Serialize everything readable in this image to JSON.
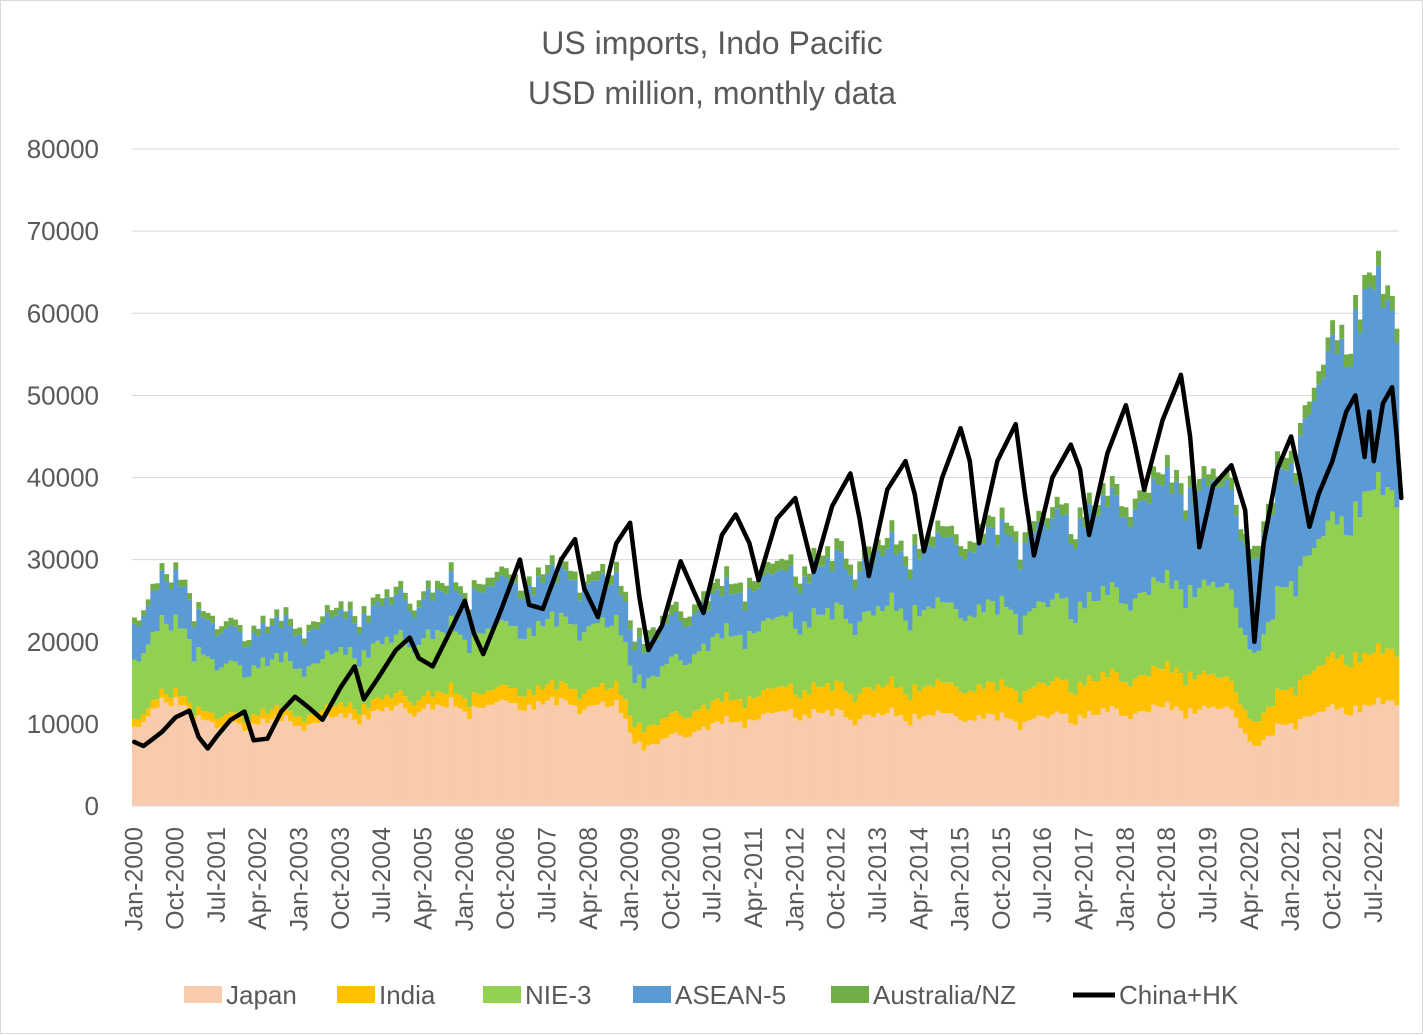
{
  "chart_data": {
    "type": "area",
    "stacking": "stacked columns with line overlay",
    "title": "US imports, Indo Pacific",
    "subtitle": "USD million, monthly data",
    "ylim": [
      0,
      80000
    ],
    "yticks": [
      0,
      10000,
      20000,
      30000,
      40000,
      50000,
      60000,
      70000,
      80000
    ],
    "grid": "horizontal",
    "legend_position": "bottom",
    "x_tick_labels": [
      "Jan-2000",
      "Oct-2000",
      "Jul-2001",
      "Apr-2002",
      "Jan-2003",
      "Oct-2003",
      "Jul-2004",
      "Apr-2005",
      "Jan-2006",
      "Oct-2006",
      "Jul-2007",
      "Apr-2008",
      "Jan-2009",
      "Oct-2009",
      "Jul-2010",
      "Apr-2011",
      "Jan-2012",
      "Oct-2012",
      "Jul-2013",
      "Apr-2014",
      "Jan-2015",
      "Oct-2015",
      "Jul-2016",
      "Apr-2017",
      "Jan-2018",
      "Oct-2018",
      "Jul-2019",
      "Apr-2020",
      "Jan-2021",
      "Oct-2021",
      "Jul-2022"
    ],
    "x_start": "Jan-2000",
    "x_end": "Dec-2022",
    "series": [
      {
        "name": "Japan",
        "color": "#F8CBAD",
        "anchors": [
          [
            "Jan-2000",
            10000
          ],
          [
            "Jul-2000",
            12500
          ],
          [
            "Jan-2001",
            12000
          ],
          [
            "Jul-2001",
            9500
          ],
          [
            "Jan-2002",
            10000
          ],
          [
            "Jul-2002",
            10500
          ],
          [
            "Jan-2003",
            10000
          ],
          [
            "Jan-2004",
            11000
          ],
          [
            "Jan-2005",
            12000
          ],
          [
            "Jan-2006",
            12000
          ],
          [
            "Jan-2007",
            12500
          ],
          [
            "Jan-2008",
            12500
          ],
          [
            "Oct-2008",
            12000
          ],
          [
            "Apr-2009",
            7000
          ],
          [
            "Jan-2010",
            9000
          ],
          [
            "Jan-2011",
            10500
          ],
          [
            "Jan-2012",
            11500
          ],
          [
            "Jan-2013",
            11000
          ],
          [
            "Jan-2014",
            11000
          ],
          [
            "Jan-2015",
            11000
          ],
          [
            "Jan-2016",
            10500
          ],
          [
            "Jan-2017",
            11000
          ],
          [
            "Jan-2018",
            11500
          ],
          [
            "Jan-2019",
            12000
          ],
          [
            "Jan-2020",
            11500
          ],
          [
            "May-2020",
            7000
          ],
          [
            "Jan-2021",
            10500
          ],
          [
            "Jan-2022",
            12000
          ],
          [
            "Dec-2022",
            12500
          ]
        ]
      },
      {
        "name": "India",
        "color": "#FFC000",
        "anchors": [
          [
            "Jan-2000",
            1000
          ],
          [
            "Jan-2003",
            1200
          ],
          [
            "Jan-2005",
            1500
          ],
          [
            "Jan-2008",
            2000
          ],
          [
            "Jan-2010",
            2500
          ],
          [
            "Jan-2012",
            3000
          ],
          [
            "Jan-2014",
            3500
          ],
          [
            "Jan-2016",
            3800
          ],
          [
            "Jan-2018",
            4300
          ],
          [
            "Jan-2019",
            4700
          ],
          [
            "May-2020",
            2800
          ],
          [
            "Jan-2021",
            4500
          ],
          [
            "Jan-2022",
            6500
          ],
          [
            "Dec-2022",
            6000
          ]
        ]
      },
      {
        "name": "NIE-3",
        "color": "#92D050",
        "anchors": [
          [
            "Jan-2000",
            7500
          ],
          [
            "Jul-2000",
            8500
          ],
          [
            "Jan-2001",
            8000
          ],
          [
            "Jul-2001",
            6000
          ],
          [
            "Jan-2002",
            6000
          ],
          [
            "Jan-2003",
            6000
          ],
          [
            "Jan-2005",
            7000
          ],
          [
            "Jan-2006",
            7500
          ],
          [
            "Jan-2007",
            7500
          ],
          [
            "Jan-2008",
            8000
          ],
          [
            "Oct-2008",
            7500
          ],
          [
            "Apr-2009",
            5500
          ],
          [
            "Jan-2010",
            7000
          ],
          [
            "Jan-2011",
            8000
          ],
          [
            "Jan-2012",
            8500
          ],
          [
            "Jan-2014",
            9500
          ],
          [
            "Jan-2016",
            9500
          ],
          [
            "Jan-2018",
            10000
          ],
          [
            "Jan-2019",
            10500
          ],
          [
            "Jan-2020",
            11000
          ],
          [
            "May-2020",
            8000
          ],
          [
            "Jan-2021",
            13500
          ],
          [
            "Jan-2022",
            17000
          ],
          [
            "Jun-2022",
            20000
          ],
          [
            "Dec-2022",
            18500
          ]
        ]
      },
      {
        "name": "ASEAN-5",
        "color": "#5B9BD5",
        "anchors": [
          [
            "Jan-2000",
            4500
          ],
          [
            "Jul-2000",
            5200
          ],
          [
            "Jan-2001",
            5000
          ],
          [
            "Jul-2001",
            4200
          ],
          [
            "Jan-2002",
            4000
          ],
          [
            "Jan-2004",
            4500
          ],
          [
            "Jan-2006",
            5000
          ],
          [
            "Jan-2008",
            5500
          ],
          [
            "Apr-2009",
            4500
          ],
          [
            "Jan-2010",
            5000
          ],
          [
            "Jan-2012",
            5500
          ],
          [
            "Jan-2014",
            7000
          ],
          [
            "Jan-2016",
            9000
          ],
          [
            "Jan-2018",
            11000
          ],
          [
            "Jan-2019",
            12000
          ],
          [
            "Jan-2020",
            12000
          ],
          [
            "May-2020",
            11000
          ],
          [
            "Jan-2021",
            15000
          ],
          [
            "Jan-2022",
            22000
          ],
          [
            "Jun-2022",
            25000
          ],
          [
            "Dec-2022",
            20500
          ]
        ]
      },
      {
        "name": "Australia/NZ",
        "color": "#70AD47",
        "anchors": [
          [
            "Jan-2000",
            800
          ],
          [
            "Jan-2004",
            900
          ],
          [
            "Jan-2008",
            1100
          ],
          [
            "Jan-2012",
            1300
          ],
          [
            "Jan-2016",
            1300
          ],
          [
            "Jan-2020",
            1400
          ],
          [
            "Jan-2022",
            1700
          ],
          [
            "Dec-2022",
            1700
          ]
        ]
      }
    ],
    "line_series": {
      "name": "China+HK",
      "color": "#000000",
      "anchors": [
        [
          "Jan-2000",
          7800
        ],
        [
          "Mar-2000",
          7300
        ],
        [
          "Jul-2000",
          9000
        ],
        [
          "Oct-2000",
          10800
        ],
        [
          "Jan-2001",
          11600
        ],
        [
          "Mar-2001",
          8400
        ],
        [
          "May-2001",
          7000
        ],
        [
          "Jul-2001",
          8500
        ],
        [
          "Oct-2001",
          10500
        ],
        [
          "Jan-2002",
          11500
        ],
        [
          "Mar-2002",
          8000
        ],
        [
          "Jun-2002",
          8200
        ],
        [
          "Sep-2002",
          11500
        ],
        [
          "Dec-2002",
          13300
        ],
        [
          "Mar-2003",
          12000
        ],
        [
          "Jun-2003",
          10500
        ],
        [
          "Oct-2003",
          14500
        ],
        [
          "Jan-2004",
          17000
        ],
        [
          "Mar-2004",
          13000
        ],
        [
          "Jun-2004",
          15500
        ],
        [
          "Oct-2004",
          19000
        ],
        [
          "Jan-2005",
          20500
        ],
        [
          "Mar-2005",
          18000
        ],
        [
          "Jun-2005",
          17000
        ],
        [
          "Oct-2005",
          21500
        ],
        [
          "Jan-2006",
          25000
        ],
        [
          "Mar-2006",
          21000
        ],
        [
          "May-2006",
          18500
        ],
        [
          "Sep-2006",
          24000
        ],
        [
          "Jan-2007",
          30000
        ],
        [
          "Mar-2007",
          24500
        ],
        [
          "Jun-2007",
          24000
        ],
        [
          "Oct-2007",
          30000
        ],
        [
          "Jan-2008",
          32500
        ],
        [
          "Mar-2008",
          26500
        ],
        [
          "Jun-2008",
          23000
        ],
        [
          "Oct-2008",
          32000
        ],
        [
          "Jan-2009",
          34500
        ],
        [
          "Mar-2009",
          25500
        ],
        [
          "May-2009",
          19000
        ],
        [
          "Aug-2009",
          22000
        ],
        [
          "Dec-2009",
          29800
        ],
        [
          "Mar-2010",
          26000
        ],
        [
          "May-2010",
          23500
        ],
        [
          "Sep-2010",
          33000
        ],
        [
          "Dec-2010",
          35500
        ],
        [
          "Mar-2011",
          32000
        ],
        [
          "May-2011",
          27500
        ],
        [
          "Sep-2011",
          35000
        ],
        [
          "Jan-2012",
          37500
        ],
        [
          "Mar-2012",
          33000
        ],
        [
          "May-2012",
          28500
        ],
        [
          "Sep-2012",
          36500
        ],
        [
          "Jan-2013",
          40500
        ],
        [
          "Mar-2013",
          35000
        ],
        [
          "May-2013",
          28000
        ],
        [
          "Sep-2013",
          38500
        ],
        [
          "Jan-2014",
          42000
        ],
        [
          "Mar-2014",
          38000
        ],
        [
          "May-2014",
          31000
        ],
        [
          "Sep-2014",
          40000
        ],
        [
          "Jan-2015",
          46000
        ],
        [
          "Mar-2015",
          42000
        ],
        [
          "May-2015",
          32000
        ],
        [
          "Sep-2015",
          42000
        ],
        [
          "Jan-2016",
          46500
        ],
        [
          "Mar-2016",
          38000
        ],
        [
          "May-2016",
          30500
        ],
        [
          "Sep-2016",
          40000
        ],
        [
          "Jan-2017",
          44000
        ],
        [
          "Mar-2017",
          41000
        ],
        [
          "May-2017",
          33000
        ],
        [
          "Sep-2017",
          43000
        ],
        [
          "Jan-2018",
          48800
        ],
        [
          "Mar-2018",
          44000
        ],
        [
          "May-2018",
          38500
        ],
        [
          "Sep-2018",
          47000
        ],
        [
          "Jan-2019",
          52500
        ],
        [
          "Mar-2019",
          45000
        ],
        [
          "May-2019",
          31500
        ],
        [
          "Aug-2019",
          39000
        ],
        [
          "Dec-2019",
          41500
        ],
        [
          "Mar-2020",
          36000
        ],
        [
          "May-2020",
          20000
        ],
        [
          "Jul-2020",
          32000
        ],
        [
          "Oct-2020",
          41000
        ],
        [
          "Jan-2021",
          45000
        ],
        [
          "Mar-2021",
          40000
        ],
        [
          "May-2021",
          34000
        ],
        [
          "Jul-2021",
          38000
        ],
        [
          "Oct-2021",
          42000
        ],
        [
          "Jan-2022",
          48000
        ],
        [
          "Mar-2022",
          50000
        ],
        [
          "May-2022",
          42500
        ],
        [
          "Jun-2022",
          48000
        ],
        [
          "Jul-2022",
          42000
        ],
        [
          "Sep-2022",
          49000
        ],
        [
          "Nov-2022",
          51000
        ],
        [
          "Dec-2022",
          45000
        ],
        [
          "Jan-2023",
          37500
        ]
      ]
    }
  }
}
